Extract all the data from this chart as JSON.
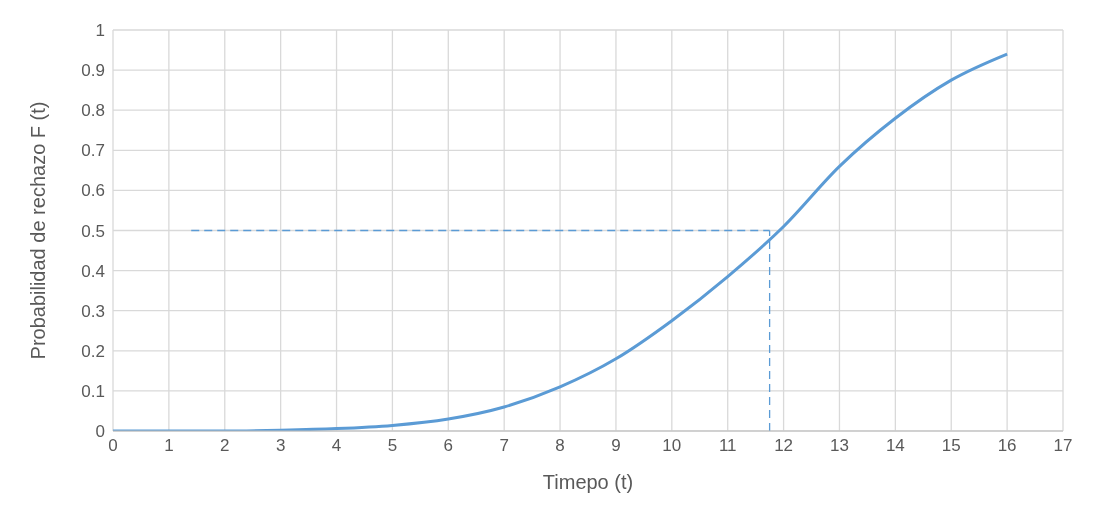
{
  "chart_data": {
    "type": "line",
    "xlabel": "Timepo (t)",
    "ylabel": "Probabilidad de rechazo F (t)",
    "xlim": [
      0,
      17
    ],
    "xticks": [
      0,
      1,
      2,
      3,
      4,
      5,
      6,
      7,
      8,
      9,
      10,
      11,
      12,
      13,
      14,
      15,
      16,
      17
    ],
    "ylim": [
      0,
      1
    ],
    "yticks": [
      0,
      0.1,
      0.2,
      0.3,
      0.4,
      0.5,
      0.6,
      0.7,
      0.8,
      0.9,
      1
    ],
    "grid": true,
    "marker": "none",
    "series": [
      {
        "color": "#5b9bd5",
        "line_style": "solid",
        "x": [
          0,
          1,
          2,
          3,
          4,
          5,
          6,
          7,
          8,
          9,
          10,
          11,
          12,
          13,
          14,
          15,
          16
        ],
        "values": [
          0,
          0,
          0,
          0.002,
          0.006,
          0.014,
          0.03,
          0.06,
          0.11,
          0.18,
          0.275,
          0.385,
          0.51,
          0.66,
          0.78,
          0.875,
          0.94
        ]
      },
      {
        "color": "#5b9bd5",
        "line_style": "dashed",
        "x": [
          1.4,
          11.75
        ],
        "values": [
          0.5,
          0.5
        ]
      },
      {
        "color": "#5b9bd5",
        "line_style": "dashed",
        "x": [
          11.75,
          11.75
        ],
        "values": [
          0,
          0.5
        ]
      }
    ]
  }
}
